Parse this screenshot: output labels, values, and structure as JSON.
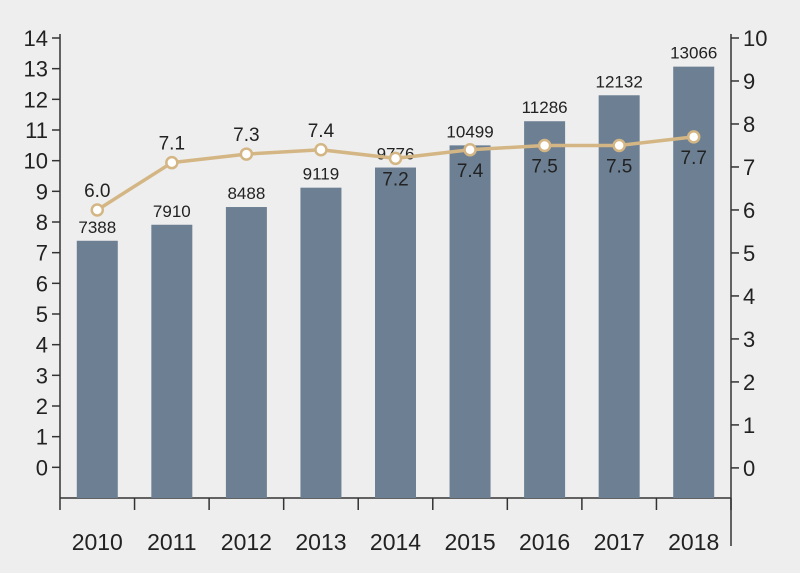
{
  "chart_data": {
    "type": "bar",
    "categories": [
      "2010",
      "2011",
      "2012",
      "2013",
      "2014",
      "2015",
      "2016",
      "2017",
      "2018"
    ],
    "series": [
      {
        "type": "bar",
        "axis": "left",
        "values": [
          7388,
          7910,
          8488,
          9119,
          9776,
          10499,
          11286,
          12132,
          13066
        ],
        "color": "#6c7f93"
      },
      {
        "type": "line",
        "axis": "right",
        "values": [
          6.0,
          7.1,
          7.3,
          7.4,
          7.2,
          7.4,
          7.5,
          7.5,
          7.7
        ],
        "value_labels": [
          "6.0",
          "7.1",
          "7.3",
          "7.4",
          "7.2",
          "7.4",
          "7.5",
          "7.5",
          "7.7"
        ],
        "color": "#d4b684"
      }
    ],
    "left_axis": {
      "ticks": [
        0,
        1,
        2,
        3,
        4,
        5,
        6,
        7,
        8,
        9,
        10,
        11,
        12,
        13,
        14
      ],
      "ylim": [
        -1,
        14
      ]
    },
    "right_axis": {
      "ticks": [
        0,
        1,
        2,
        3,
        4,
        5,
        6,
        7,
        8,
        9,
        10
      ],
      "ylim": [
        -0.7,
        10
      ]
    },
    "bar_height_scale": "bar value / 1000 on left axis",
    "grid": false,
    "legend": "none",
    "title": "",
    "xlabel": "",
    "ylabel": ""
  }
}
